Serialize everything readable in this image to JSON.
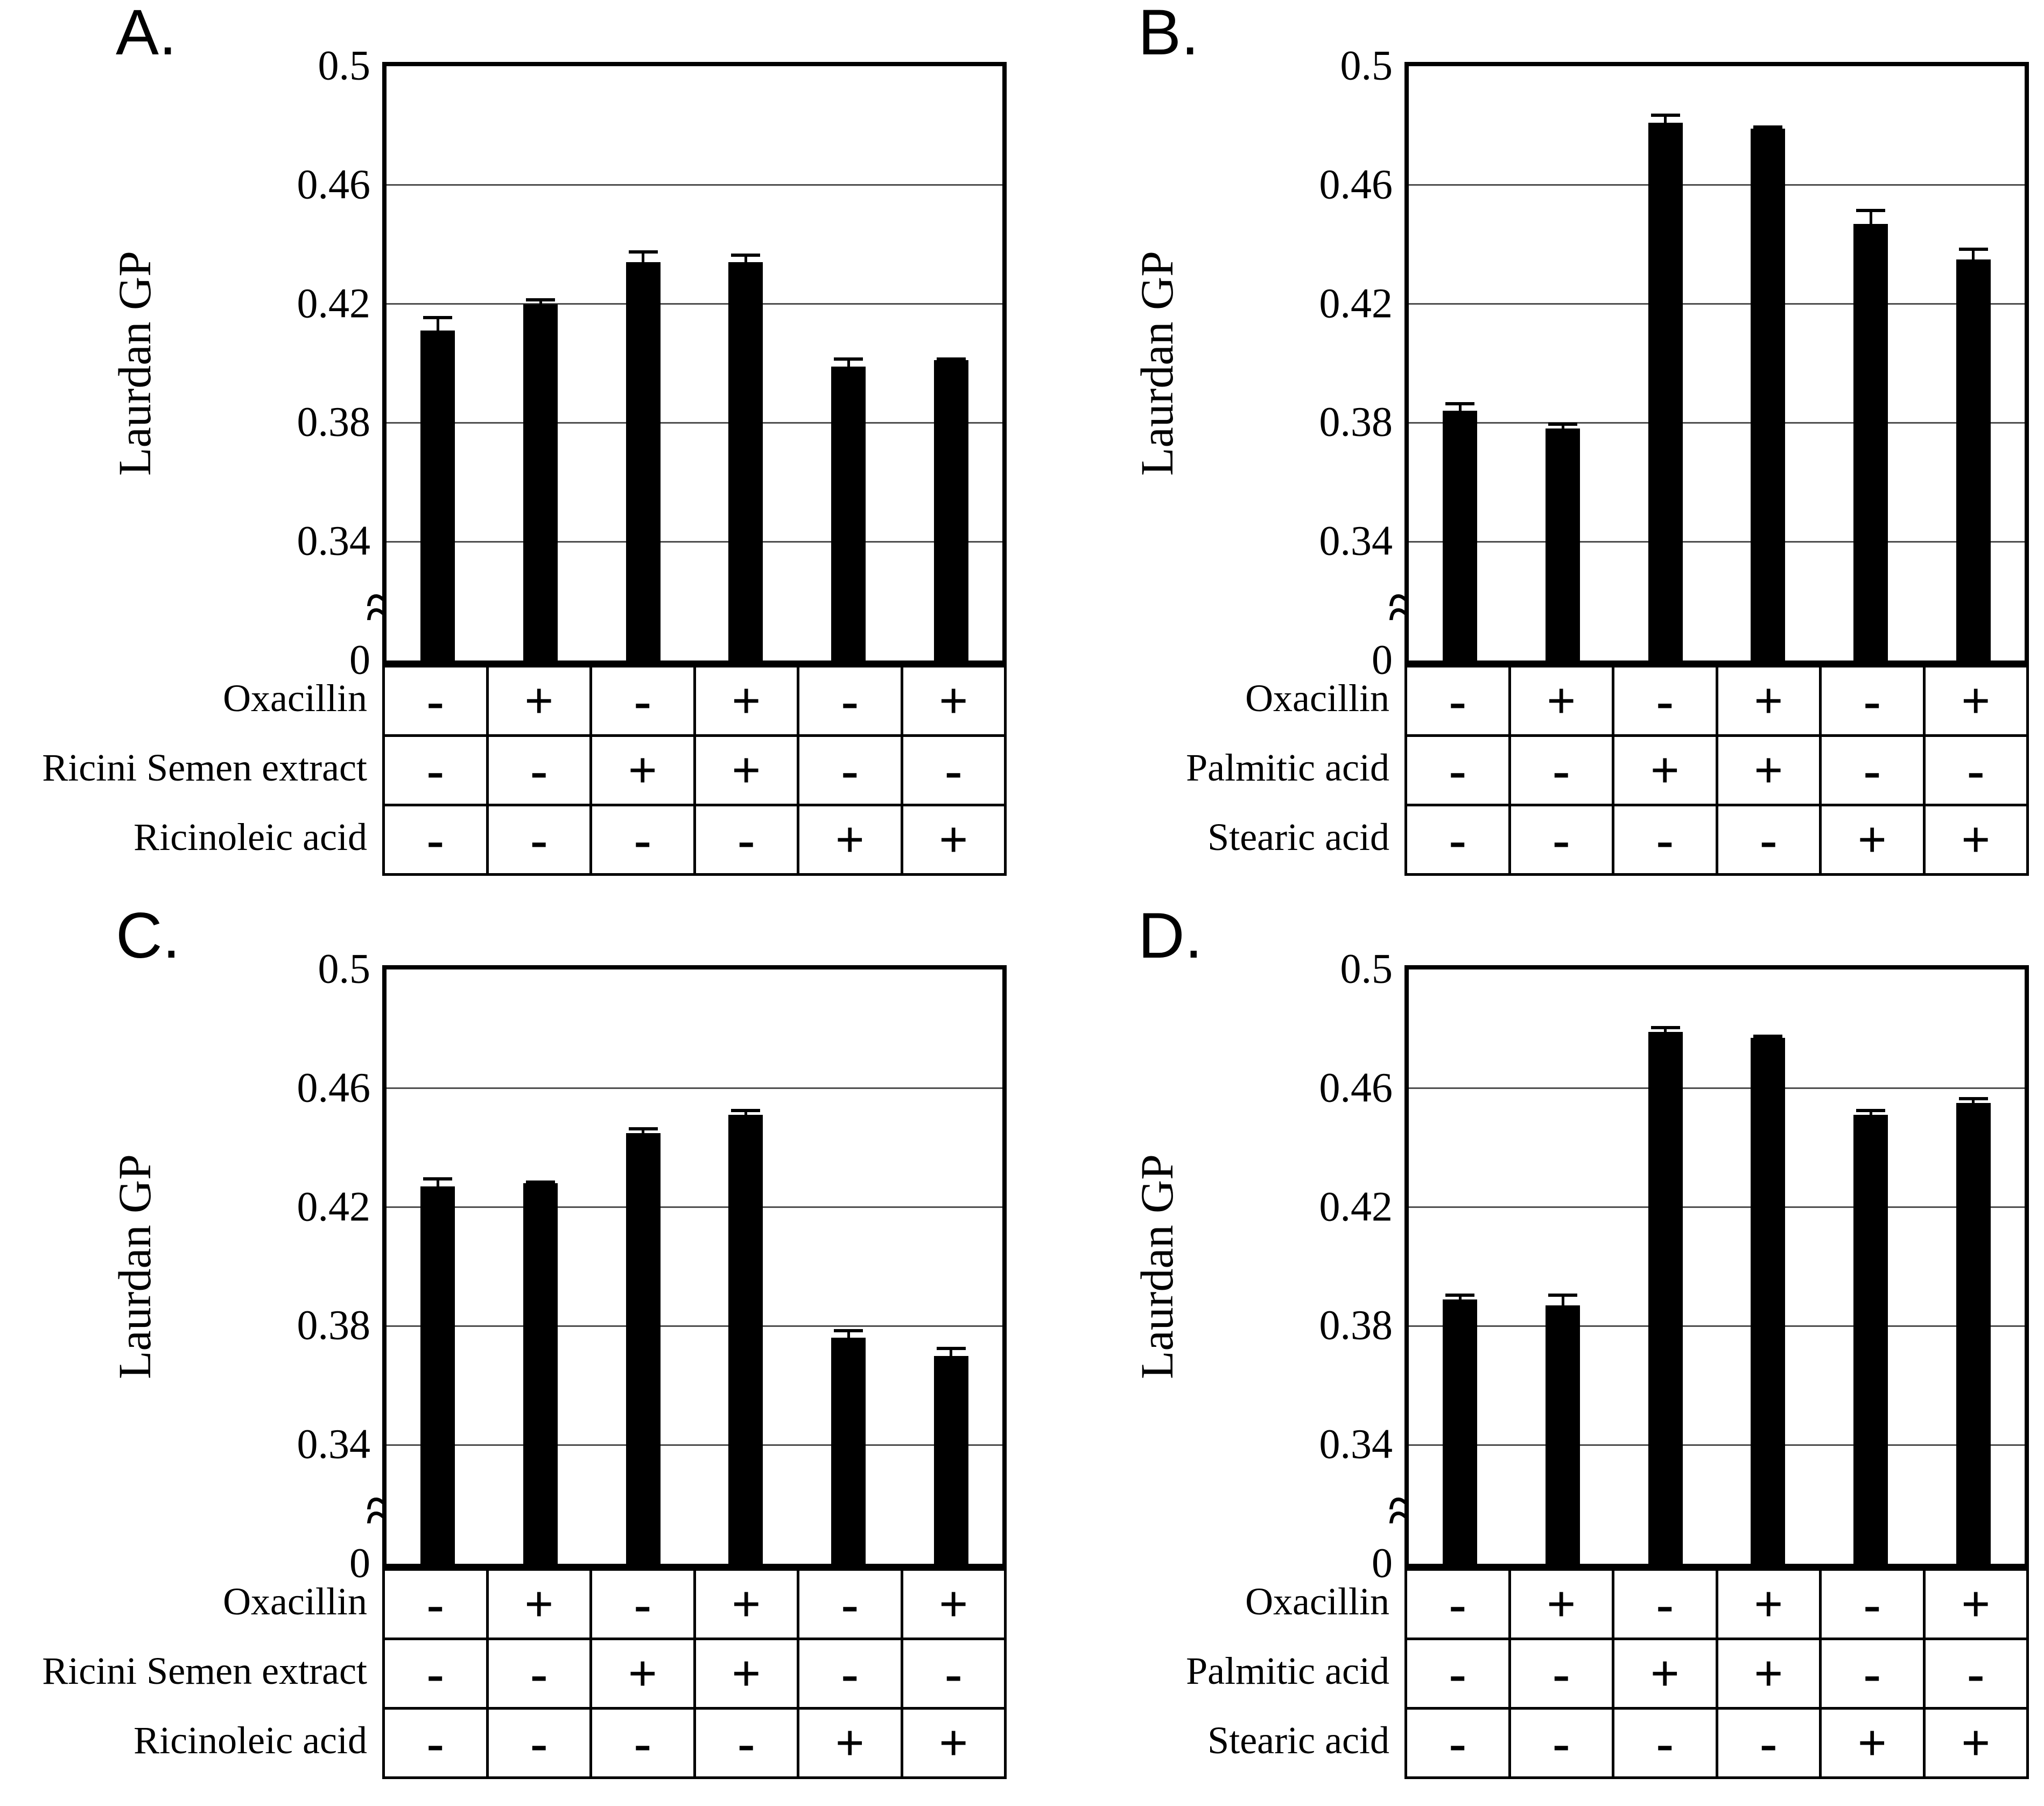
{
  "chart_data": [
    {
      "panel_label": "A.",
      "type": "bar",
      "ylabel": "Laurdan GP",
      "y_ticks": [
        "0.5",
        "0.46",
        "0.42",
        "0.38",
        "0.34",
        "0"
      ],
      "gridline_values": [
        0.46,
        0.42,
        0.38,
        0.34
      ],
      "ylim": [
        0,
        0.5
      ],
      "axis_break": true,
      "axis_break_symbol": "≈",
      "bar_color": "#000000",
      "values": [
        0.411,
        0.42,
        0.434,
        0.434,
        0.399,
        0.401
      ],
      "errors": [
        0.005,
        0.002,
        0.004,
        0.003,
        0.003,
        0.001
      ],
      "condition_rows": [
        {
          "label": "Oxacillin",
          "signs": [
            "-",
            "+",
            "-",
            "+",
            "-",
            "+"
          ]
        },
        {
          "label": "Ricini Semen extract",
          "signs": [
            "-",
            "-",
            "+",
            "+",
            "-",
            "-"
          ]
        },
        {
          "label": "Ricinoleic acid",
          "signs": [
            "-",
            "-",
            "-",
            "-",
            "+",
            "+"
          ]
        }
      ]
    },
    {
      "panel_label": "B.",
      "type": "bar",
      "ylabel": "Laurdan GP",
      "y_ticks": [
        "0.5",
        "0.46",
        "0.42",
        "0.38",
        "0.34",
        "0"
      ],
      "gridline_values": [
        0.46,
        0.42,
        0.38,
        0.34
      ],
      "ylim": [
        0,
        0.5
      ],
      "axis_break": true,
      "axis_break_symbol": "≈",
      "bar_color": "#000000",
      "values": [
        0.384,
        0.378,
        0.481,
        0.479,
        0.447,
        0.435
      ],
      "errors": [
        0.003,
        0.002,
        0.003,
        0.001,
        0.005,
        0.004
      ],
      "condition_rows": [
        {
          "label": "Oxacillin",
          "signs": [
            "-",
            "+",
            "-",
            "+",
            "-",
            "+"
          ]
        },
        {
          "label": "Palmitic acid",
          "signs": [
            "-",
            "-",
            "+",
            "+",
            "-",
            "-"
          ]
        },
        {
          "label": "Stearic acid",
          "signs": [
            "-",
            "-",
            "-",
            "-",
            "+",
            "+"
          ]
        }
      ]
    },
    {
      "panel_label": "C.",
      "type": "bar",
      "ylabel": "Laurdan GP",
      "y_ticks": [
        "0.5",
        "0.46",
        "0.42",
        "0.38",
        "0.34",
        "0"
      ],
      "gridline_values": [
        0.46,
        0.42,
        0.38,
        0.34
      ],
      "ylim": [
        0,
        0.5
      ],
      "axis_break": true,
      "axis_break_symbol": "≈",
      "bar_color": "#000000",
      "values": [
        0.427,
        0.428,
        0.445,
        0.451,
        0.376,
        0.37
      ],
      "errors": [
        0.003,
        0.001,
        0.002,
        0.002,
        0.003,
        0.003
      ],
      "condition_rows": [
        {
          "label": "Oxacillin",
          "signs": [
            "-",
            "+",
            "-",
            "+",
            "-",
            "+"
          ]
        },
        {
          "label": "Ricini Semen extract",
          "signs": [
            "-",
            "-",
            "+",
            "+",
            "-",
            "-"
          ]
        },
        {
          "label": "Ricinoleic acid",
          "signs": [
            "-",
            "-",
            "-",
            "-",
            "+",
            "+"
          ]
        }
      ]
    },
    {
      "panel_label": "D.",
      "type": "bar",
      "ylabel": "Laurdan GP",
      "y_ticks": [
        "0.5",
        "0.46",
        "0.42",
        "0.38",
        "0.34",
        "0"
      ],
      "gridline_values": [
        0.46,
        0.42,
        0.38,
        0.34
      ],
      "ylim": [
        0,
        0.5
      ],
      "axis_break": true,
      "axis_break_symbol": "≈",
      "bar_color": "#000000",
      "values": [
        0.389,
        0.387,
        0.479,
        0.477,
        0.451,
        0.455
      ],
      "errors": [
        0.002,
        0.004,
        0.002,
        0.001,
        0.002,
        0.002
      ],
      "condition_rows": [
        {
          "label": "Oxacillin",
          "signs": [
            "-",
            "+",
            "-",
            "+",
            "-",
            "+"
          ]
        },
        {
          "label": "Palmitic acid",
          "signs": [
            "-",
            "-",
            "+",
            "+",
            "-",
            "-"
          ]
        },
        {
          "label": "Stearic acid",
          "signs": [
            "-",
            "-",
            "-",
            "-",
            "+",
            "+"
          ]
        }
      ]
    }
  ]
}
